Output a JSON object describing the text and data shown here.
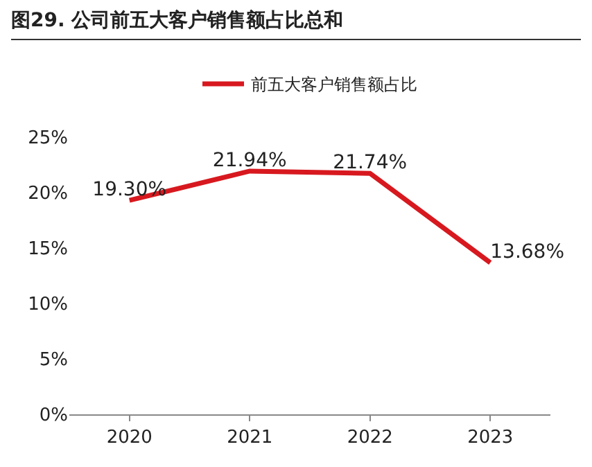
{
  "chart_data": {
    "type": "line",
    "title": "图29. 公司前五大客户销售额占比总和",
    "categories": [
      "2020",
      "2021",
      "2022",
      "2023"
    ],
    "series": [
      {
        "name": "前五大客户销售额占比",
        "color": "#d7191f",
        "values": [
          19.3,
          21.94,
          21.74,
          13.68
        ],
        "value_labels": [
          "19.30%",
          "21.94%",
          "21.74%",
          "13.68%"
        ]
      }
    ],
    "ylim": [
      0,
      25
    ],
    "yticks": [
      {
        "value": 0,
        "label": "0%"
      },
      {
        "value": 5,
        "label": "5%"
      },
      {
        "value": 10,
        "label": "10%"
      },
      {
        "value": 15,
        "label": "15%"
      },
      {
        "value": 20,
        "label": "20%"
      },
      {
        "value": 25,
        "label": "25%"
      }
    ],
    "grid": false,
    "legend": "top",
    "marker": "none",
    "line_style": "solid"
  }
}
